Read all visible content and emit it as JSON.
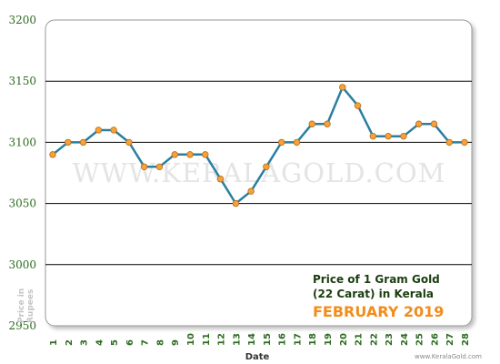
{
  "chart_data": {
    "type": "line",
    "watermark": "WWW.KERALAGOLD.COM",
    "info_line1": "Price of 1 Gram Gold",
    "info_line2": "(22 Carat) in Kerala",
    "info_month": "FEBRUARY 2019",
    "xlabel": "Date",
    "ylabel_line1": "Price in",
    "ylabel_line2": "Rupees",
    "credit": "www.KeralaGold.com",
    "ylim": [
      2950,
      3200
    ],
    "yticks": [
      "2950",
      "3000",
      "3050",
      "3100",
      "3150",
      "3200"
    ],
    "categories": [
      "1",
      "2",
      "3",
      "4",
      "5",
      "6",
      "7",
      "8",
      "9",
      "10",
      "11",
      "12",
      "13",
      "14",
      "15",
      "16",
      "17",
      "18",
      "19",
      "20",
      "21",
      "22",
      "23",
      "24",
      "25",
      "26",
      "27",
      "28"
    ],
    "values": [
      3090,
      3100,
      3100,
      3110,
      3110,
      3100,
      3080,
      3080,
      3090,
      3090,
      3090,
      3070,
      3050,
      3060,
      3080,
      3100,
      3100,
      3115,
      3115,
      3145,
      3130,
      3105,
      3105,
      3105,
      3115,
      3115,
      3100,
      3100
    ],
    "colors": {
      "line": "#2a7fa0",
      "marker": "#f5a23c",
      "marker_edge": "#b86a14",
      "grid": "#000000",
      "tick_text": "#2c6b1f"
    },
    "grid": true
  }
}
